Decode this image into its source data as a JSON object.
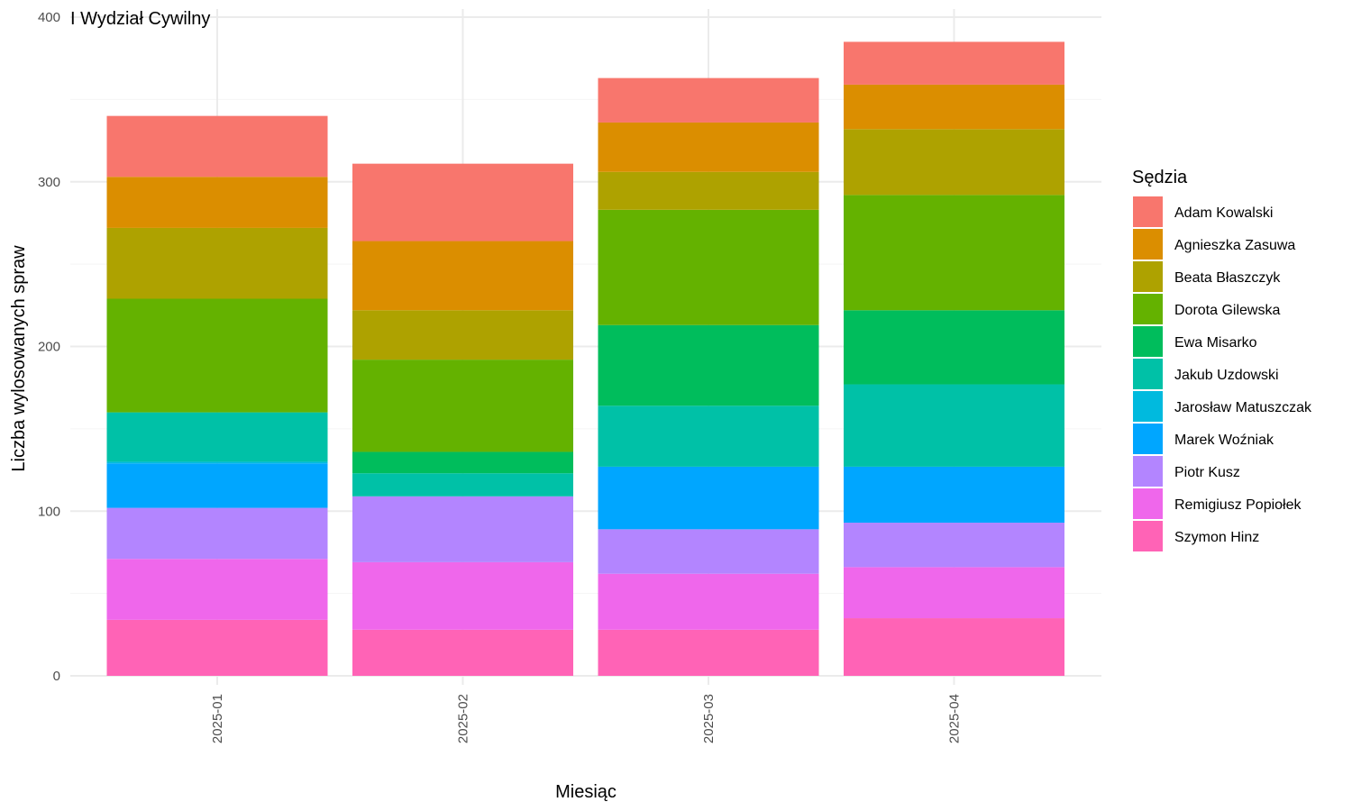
{
  "chart_data": {
    "type": "bar",
    "stacked": true,
    "title": "I Wydział Cywilny",
    "xlabel": "Miesiąc",
    "ylabel": "Liczba wylosowanych spraw",
    "ylim": [
      0,
      400
    ],
    "yticks": [
      0,
      100,
      200,
      300,
      400
    ],
    "categories": [
      "2025-01",
      "2025-02",
      "2025-03",
      "2025-04"
    ],
    "grid": true,
    "legend": {
      "title": "Sędzia",
      "position": "right"
    },
    "series": [
      {
        "name": "Adam Kowalski",
        "color": "#F8766D",
        "values": [
          37,
          47,
          27,
          26
        ]
      },
      {
        "name": "Agnieszka Zasuwa",
        "color": "#DB8E00",
        "values": [
          31,
          42,
          30,
          27
        ]
      },
      {
        "name": "Beata Błaszczyk",
        "color": "#AEA200",
        "values": [
          43,
          30,
          23,
          40
        ]
      },
      {
        "name": "Dorota Gilewska",
        "color": "#64B200",
        "values": [
          69,
          56,
          70,
          70
        ]
      },
      {
        "name": "Ewa Misarko",
        "color": "#00BD5C",
        "values": [
          0,
          13,
          49,
          45
        ]
      },
      {
        "name": "Jakub Uzdowski",
        "color": "#00C1A7",
        "values": [
          30,
          14,
          37,
          50
        ]
      },
      {
        "name": "Jarosław Matuszczak",
        "color": "#00BADE",
        "values": [
          1,
          0,
          0,
          0
        ]
      },
      {
        "name": "Marek Woźniak",
        "color": "#00A6FF",
        "values": [
          27,
          0,
          38,
          34
        ]
      },
      {
        "name": "Piotr Kusz",
        "color": "#B385FF",
        "values": [
          31,
          40,
          27,
          27
        ]
      },
      {
        "name": "Remigiusz Popiołek",
        "color": "#EF67EB",
        "values": [
          37,
          41,
          34,
          31
        ]
      },
      {
        "name": "Szymon Hinz",
        "color": "#FF63B6",
        "values": [
          34,
          28,
          28,
          35
        ]
      }
    ]
  }
}
